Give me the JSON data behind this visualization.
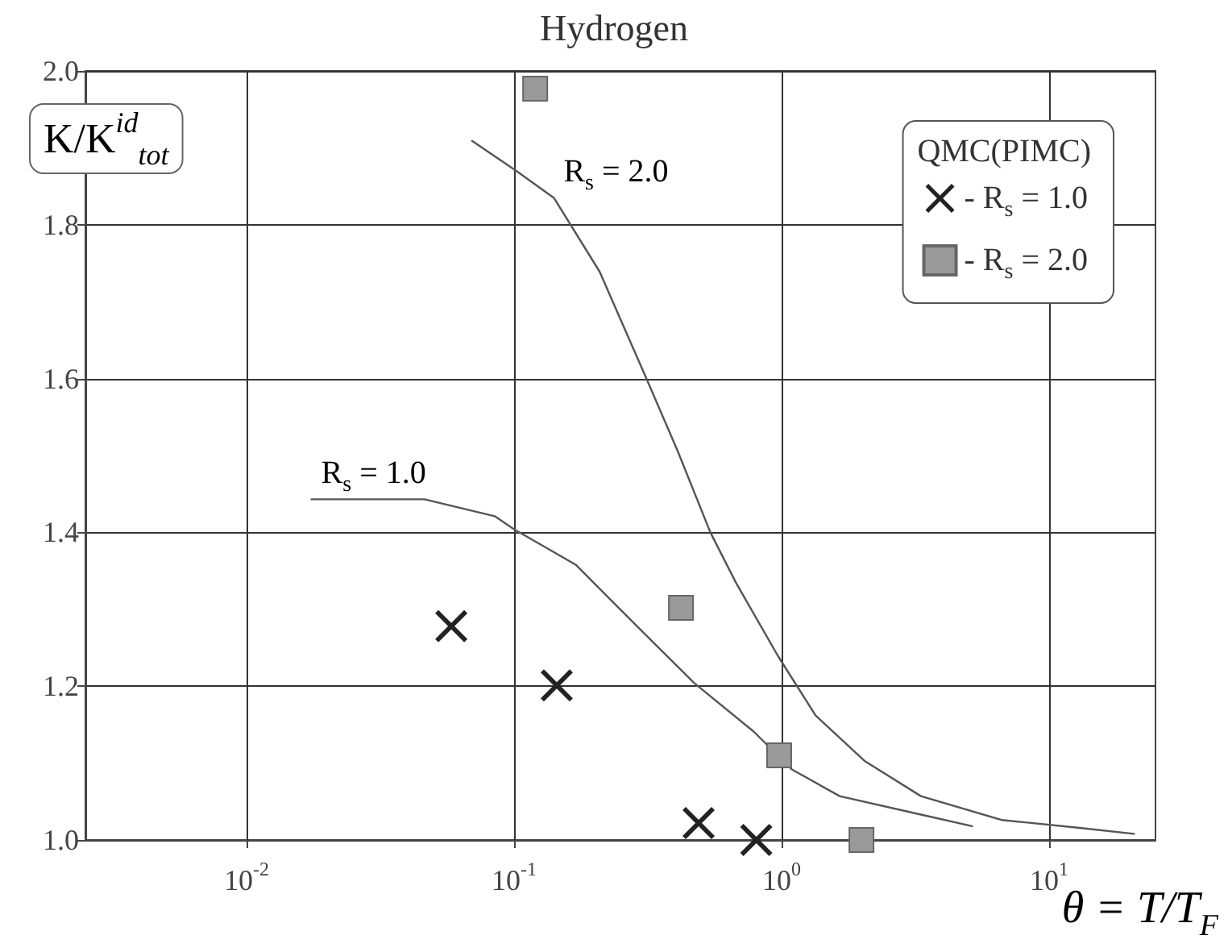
{
  "chart_data": {
    "type": "line",
    "title": "Hydrogen",
    "xlabel": "θ = T/T$_{F}$",
    "ylabel": "K/K$^{id}$$_{tot}$",
    "legend_title": "QMC(PIMC)",
    "annotations": [
      {
        "text": "R$_{s}$ = 2.0",
        "x": 0.141,
        "y": 1.835
      },
      {
        "text": "R$_{s}$ = 1.0",
        "x": 0.0175,
        "y": 1.443
      }
    ],
    "log": "x",
    "grid": true,
    "legend": "top right",
    "xlim": [
      0.0025,
      25
    ],
    "xticks": [
      {
        "value": 0.01,
        "label": "10$^{-2}$"
      },
      {
        "value": 0.1,
        "label": "10$^{-1}$"
      },
      {
        "value": 1,
        "label": "10$^{0}$"
      },
      {
        "value": 10,
        "label": "10$^{1}$"
      }
    ],
    "ylim": [
      1,
      2
    ],
    "yticks": [
      {
        "value": 1,
        "label": "1.0"
      },
      1.2,
      1.4,
      1.6,
      1.8,
      {
        "value": 2,
        "label": "2.0"
      }
    ],
    "series": [
      {
        "marker": "none",
        "color": "#555555",
        "x": [
          0.0175,
          0.0463,
          0.0847,
          0.1,
          0.17,
          0.296,
          0.472,
          0.787,
          1.09,
          1.65,
          3.32,
          5.16
        ],
        "values": [
          1.443,
          1.443,
          1.421,
          1.404,
          1.358,
          1.274,
          1.204,
          1.141,
          1.092,
          1.057,
          1.033,
          1.018
        ]
      },
      {
        "marker": "none",
        "color": "#555555",
        "x": [
          0.0697,
          0.102,
          0.141,
          0.209,
          0.31,
          0.41,
          0.542,
          0.677,
          0.971,
          1.34,
          2.04,
          3.32,
          6.65,
          12.8,
          20.8
        ],
        "values": [
          1.909,
          1.87,
          1.835,
          1.739,
          1.603,
          1.505,
          1.4,
          1.334,
          1.239,
          1.162,
          1.103,
          1.057,
          1.026,
          1.016,
          1.008
        ]
      },
      {
        "type": "scatter",
        "name": "- R$_{s}$ = 1.0",
        "marker": "cross",
        "color": "#222222",
        "x": [
          0.0583,
          0.1445,
          0.49,
          0.805
        ],
        "values": [
          1.278,
          1.201,
          1.022,
          1.0
        ]
      },
      {
        "type": "scatter",
        "name": "- R$_{s}$ = 2.0",
        "marker": "square",
        "color": "#9a9a9a",
        "x": [
          0.12,
          0.421,
          0.98,
          1.99
        ],
        "values": [
          1.977,
          1.302,
          1.11,
          1.0
        ]
      }
    ]
  }
}
